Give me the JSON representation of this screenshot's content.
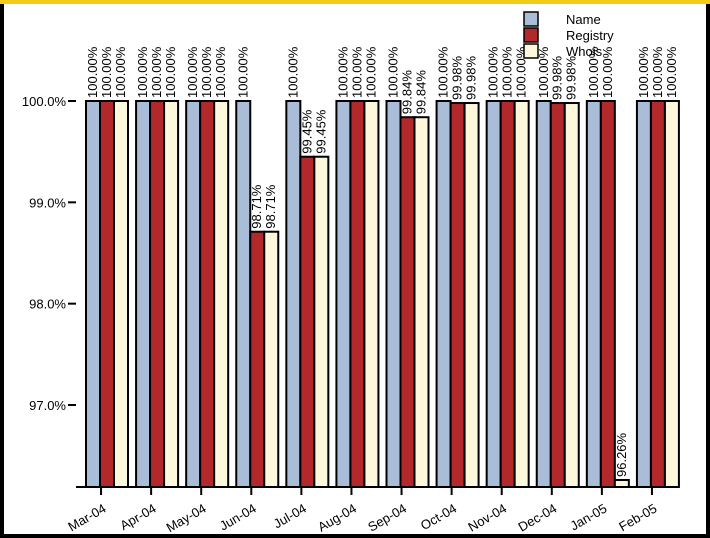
{
  "chart_data": {
    "type": "bar",
    "title": "",
    "xlabel": "",
    "ylabel": "",
    "categories": [
      "Mar-04",
      "Apr-04",
      "May-04",
      "Jun-04",
      "Jul-04",
      "Aug-04",
      "Sep-04",
      "Oct-04",
      "Nov-04",
      "Dec-04",
      "Jan-05",
      "Feb-05"
    ],
    "series": [
      {
        "name": "Name",
        "color": "#a9bcd8",
        "values": [
          100.0,
          100.0,
          100.0,
          100.0,
          100.0,
          100.0,
          100.0,
          100.0,
          100.0,
          100.0,
          100.0,
          100.0
        ],
        "labels": [
          "100.00%",
          "100.00%",
          "100.00%",
          "100.00%",
          "100.00%",
          "100.00%",
          "100.00%",
          "100.00%",
          "100.00%",
          "100.00%",
          "100.00%",
          "100.00%"
        ]
      },
      {
        "name": "Registry",
        "color": "#b3282b",
        "values": [
          100.0,
          100.0,
          100.0,
          98.71,
          99.45,
          100.0,
          99.84,
          99.98,
          100.0,
          99.98,
          100.0,
          100.0
        ],
        "labels": [
          "100.00%",
          "100.00%",
          "100.00%",
          "98.71%",
          "99.45%",
          "100.00%",
          "99.84%",
          "99.98%",
          "100.00%",
          "99.98%",
          "100.00%",
          "100.00%"
        ]
      },
      {
        "name": "Whois",
        "color": "#fdf8dc",
        "values": [
          100.0,
          100.0,
          100.0,
          98.71,
          99.45,
          100.0,
          99.84,
          99.98,
          100.0,
          99.98,
          96.26,
          100.0
        ],
        "labels": [
          "100.00%",
          "100.00%",
          "100.00%",
          "98.71%",
          "99.45%",
          "100.00%",
          "99.84%",
          "99.98%",
          "100.00%",
          "99.98%",
          "96.26%",
          "100.00%"
        ]
      }
    ],
    "y_ticks": [
      97.0,
      98.0,
      99.0,
      100.0
    ],
    "y_tick_labels": [
      "97.0%",
      "98.0%",
      "99.0%",
      "100.0%"
    ],
    "ylim": [
      96.26,
      100.0
    ],
    "grid": false,
    "legend_position": "top-right",
    "colors": {
      "frame": "#000000",
      "top_strip": "#f2cc17",
      "plot_bg": "#ffffff"
    }
  }
}
